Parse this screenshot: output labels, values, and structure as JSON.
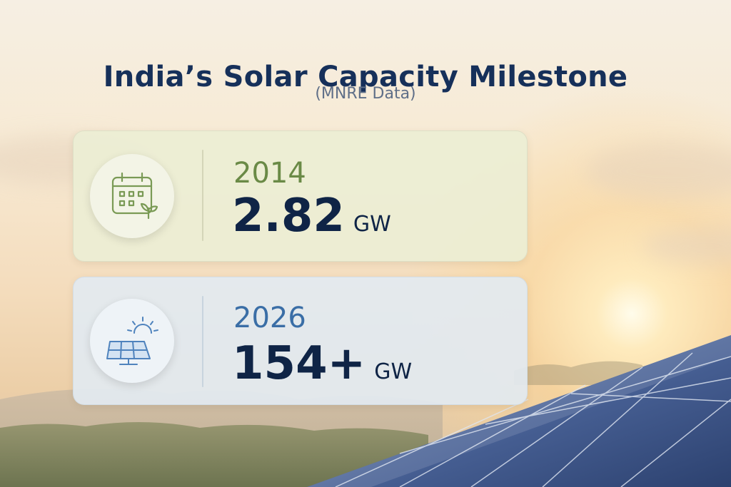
{
  "header": {
    "title": "India’s Solar Capacity Milestone",
    "subtitle": "(MNRE Data)"
  },
  "milestones": [
    {
      "year": "2014",
      "value": "2.82",
      "unit": "GW",
      "icon": "calendar-sprout-icon"
    },
    {
      "year": "2026",
      "value": "154+",
      "unit": "GW",
      "icon": "solar-panel-sun-icon"
    }
  ],
  "colors": {
    "title": "#16305a",
    "year_2014": "#6a8a46",
    "year_2026": "#3a6ea6",
    "value": "#0f2446"
  }
}
